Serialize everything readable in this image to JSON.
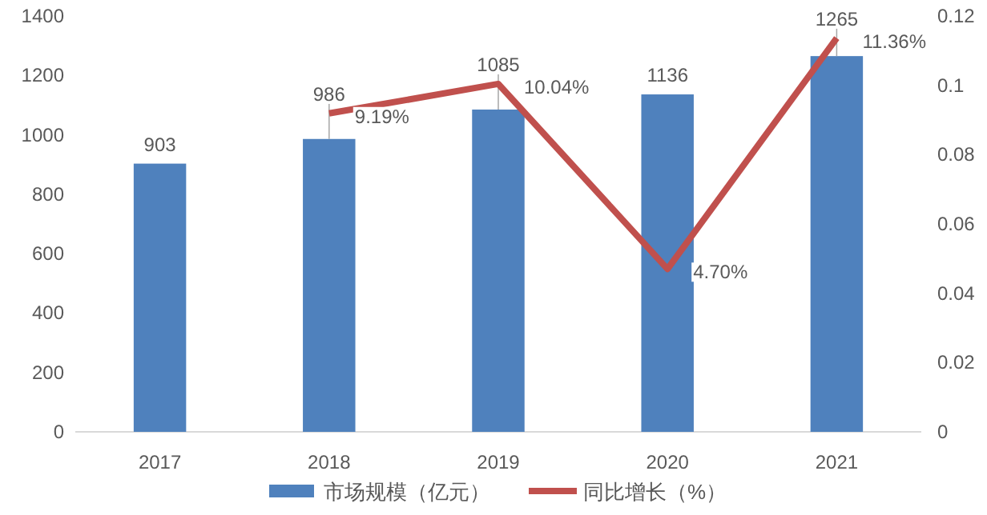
{
  "chart_data": {
    "type": "bar",
    "categories": [
      "2017",
      "2018",
      "2019",
      "2020",
      "2021"
    ],
    "series": [
      {
        "name": "市场规模（亿元）",
        "type": "bar",
        "color": "#4f81bd",
        "values": [
          903,
          986,
          1085,
          1136,
          1265
        ],
        "value_labels": [
          "903",
          "986",
          "1085",
          "1136",
          "1265"
        ]
      },
      {
        "name": "同比增长（%）",
        "type": "line",
        "axis": "y2",
        "color": "#c0504d",
        "values": [
          null,
          0.0919,
          0.1004,
          0.047,
          0.1136
        ],
        "value_labels": [
          null,
          "9.19%",
          "10.04%",
          "4.70%",
          "11.36%"
        ]
      }
    ],
    "ylim": [
      0,
      1400
    ],
    "yticks": [
      0,
      200,
      400,
      600,
      800,
      1000,
      1200,
      1400
    ],
    "y2lim": [
      0,
      0.12
    ],
    "y2ticks": [
      0,
      0.02,
      0.04,
      0.06,
      0.08,
      0.1,
      0.12
    ],
    "legend": "bottom",
    "grid": false
  }
}
